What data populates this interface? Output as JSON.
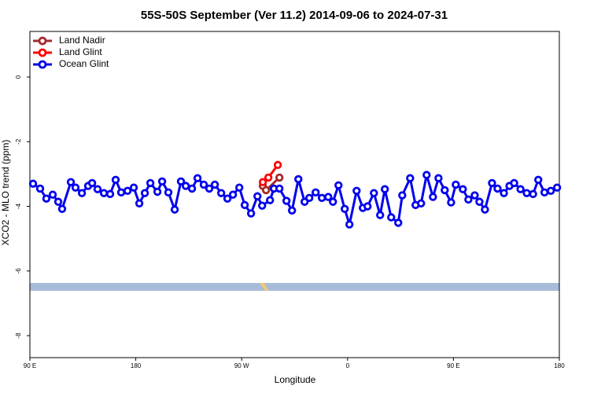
{
  "chart_data": {
    "type": "line",
    "title": "55S-50S September (Ver 11.2)   2014-09-06 to 2024-07-31",
    "x_label": "Longitude",
    "y_label": "XCO2 - MLO trend (ppm)",
    "xlim": [
      90,
      540
    ],
    "ylim": [
      -8.68,
      1.41
    ],
    "xticks": [
      {
        "value": 90,
        "label": "90 E"
      },
      180,
      {
        "value": 270,
        "label": "90 W"
      },
      {
        "value": 360,
        "label": "0"
      },
      {
        "value": 450,
        "label": "90 E"
      },
      {
        "value": 540,
        "label": "180"
      }
    ],
    "yticks": [
      0,
      -2,
      -4,
      -6,
      -8
    ],
    "legend": "top-left",
    "series": [
      {
        "name": "Land Nadir",
        "color": "#a52a2a",
        "x": [
          288.0,
          290.7,
          302.1
        ],
        "values": [
          -3.37,
          -3.5,
          -3.11
        ]
      },
      {
        "name": "Land Glint",
        "color": "#ff0000",
        "x": [
          288.0,
          292.7,
          300.7
        ],
        "values": [
          -3.25,
          -3.11,
          -2.72
        ]
      },
      {
        "name": "Ocean Glint",
        "color": "#0000ee",
        "x": [
          92.7,
          98.7,
          104.0,
          109.4,
          114.1,
          117.4,
          124.8,
          128.8,
          134.2,
          139.5,
          142.9,
          147.5,
          152.9,
          158.2,
          162.9,
          167.6,
          173.0,
          178.3,
          183.0,
          187.7,
          192.4,
          198.4,
          202.4,
          207.7,
          213.1,
          218.4,
          222.5,
          227.8,
          232.5,
          237.8,
          242.5,
          247.2,
          252.6,
          257.9,
          262.6,
          268.0,
          272.6,
          278.0,
          283.4,
          287.4,
          294.1,
          297.4,
          302.1,
          308.1,
          312.8,
          318.2,
          323.5,
          327.5,
          332.9,
          338.2,
          343.6,
          347.6,
          352.3,
          357.6,
          361.6,
          367.7,
          373.0,
          377.0,
          382.4,
          387.7,
          391.7,
          397.1,
          403.1,
          406.5,
          413.2,
          417.8,
          422.5,
          427.2,
          432.6,
          437.3,
          442.6,
          448.0,
          452.0,
          458.0,
          462.7,
          468.1,
          472.1,
          476.8,
          482.8,
          487.5,
          492.9,
          497.6,
          501.6,
          507.0,
          512.3,
          517.7,
          522.1,
          527.4,
          532.8,
          538.1
        ],
        "values": [
          -3.3,
          -3.45,
          -3.76,
          -3.64,
          -3.86,
          -4.08,
          -3.25,
          -3.42,
          -3.59,
          -3.37,
          -3.28,
          -3.47,
          -3.59,
          -3.62,
          -3.18,
          -3.57,
          -3.52,
          -3.42,
          -3.91,
          -3.59,
          -3.28,
          -3.55,
          -3.23,
          -3.57,
          -4.1,
          -3.23,
          -3.37,
          -3.45,
          -3.13,
          -3.33,
          -3.45,
          -3.33,
          -3.59,
          -3.76,
          -3.64,
          -3.42,
          -3.96,
          -4.22,
          -3.69,
          -3.98,
          -3.81,
          -3.45,
          -3.45,
          -3.83,
          -4.13,
          -3.16,
          -3.86,
          -3.74,
          -3.57,
          -3.74,
          -3.71,
          -3.86,
          -3.35,
          -4.08,
          -4.56,
          -3.52,
          -4.05,
          -4.0,
          -3.59,
          -4.27,
          -3.47,
          -4.34,
          -4.51,
          -3.66,
          -3.13,
          -3.96,
          -3.91,
          -3.03,
          -3.71,
          -3.13,
          -3.5,
          -3.88,
          -3.33,
          -3.47,
          -3.79,
          -3.66,
          -3.86,
          -4.1,
          -3.28,
          -3.45,
          -3.59,
          -3.37,
          -3.28,
          -3.47,
          -3.59,
          -3.62,
          -3.18,
          -3.57,
          -3.52,
          -3.42
        ]
      }
    ]
  }
}
